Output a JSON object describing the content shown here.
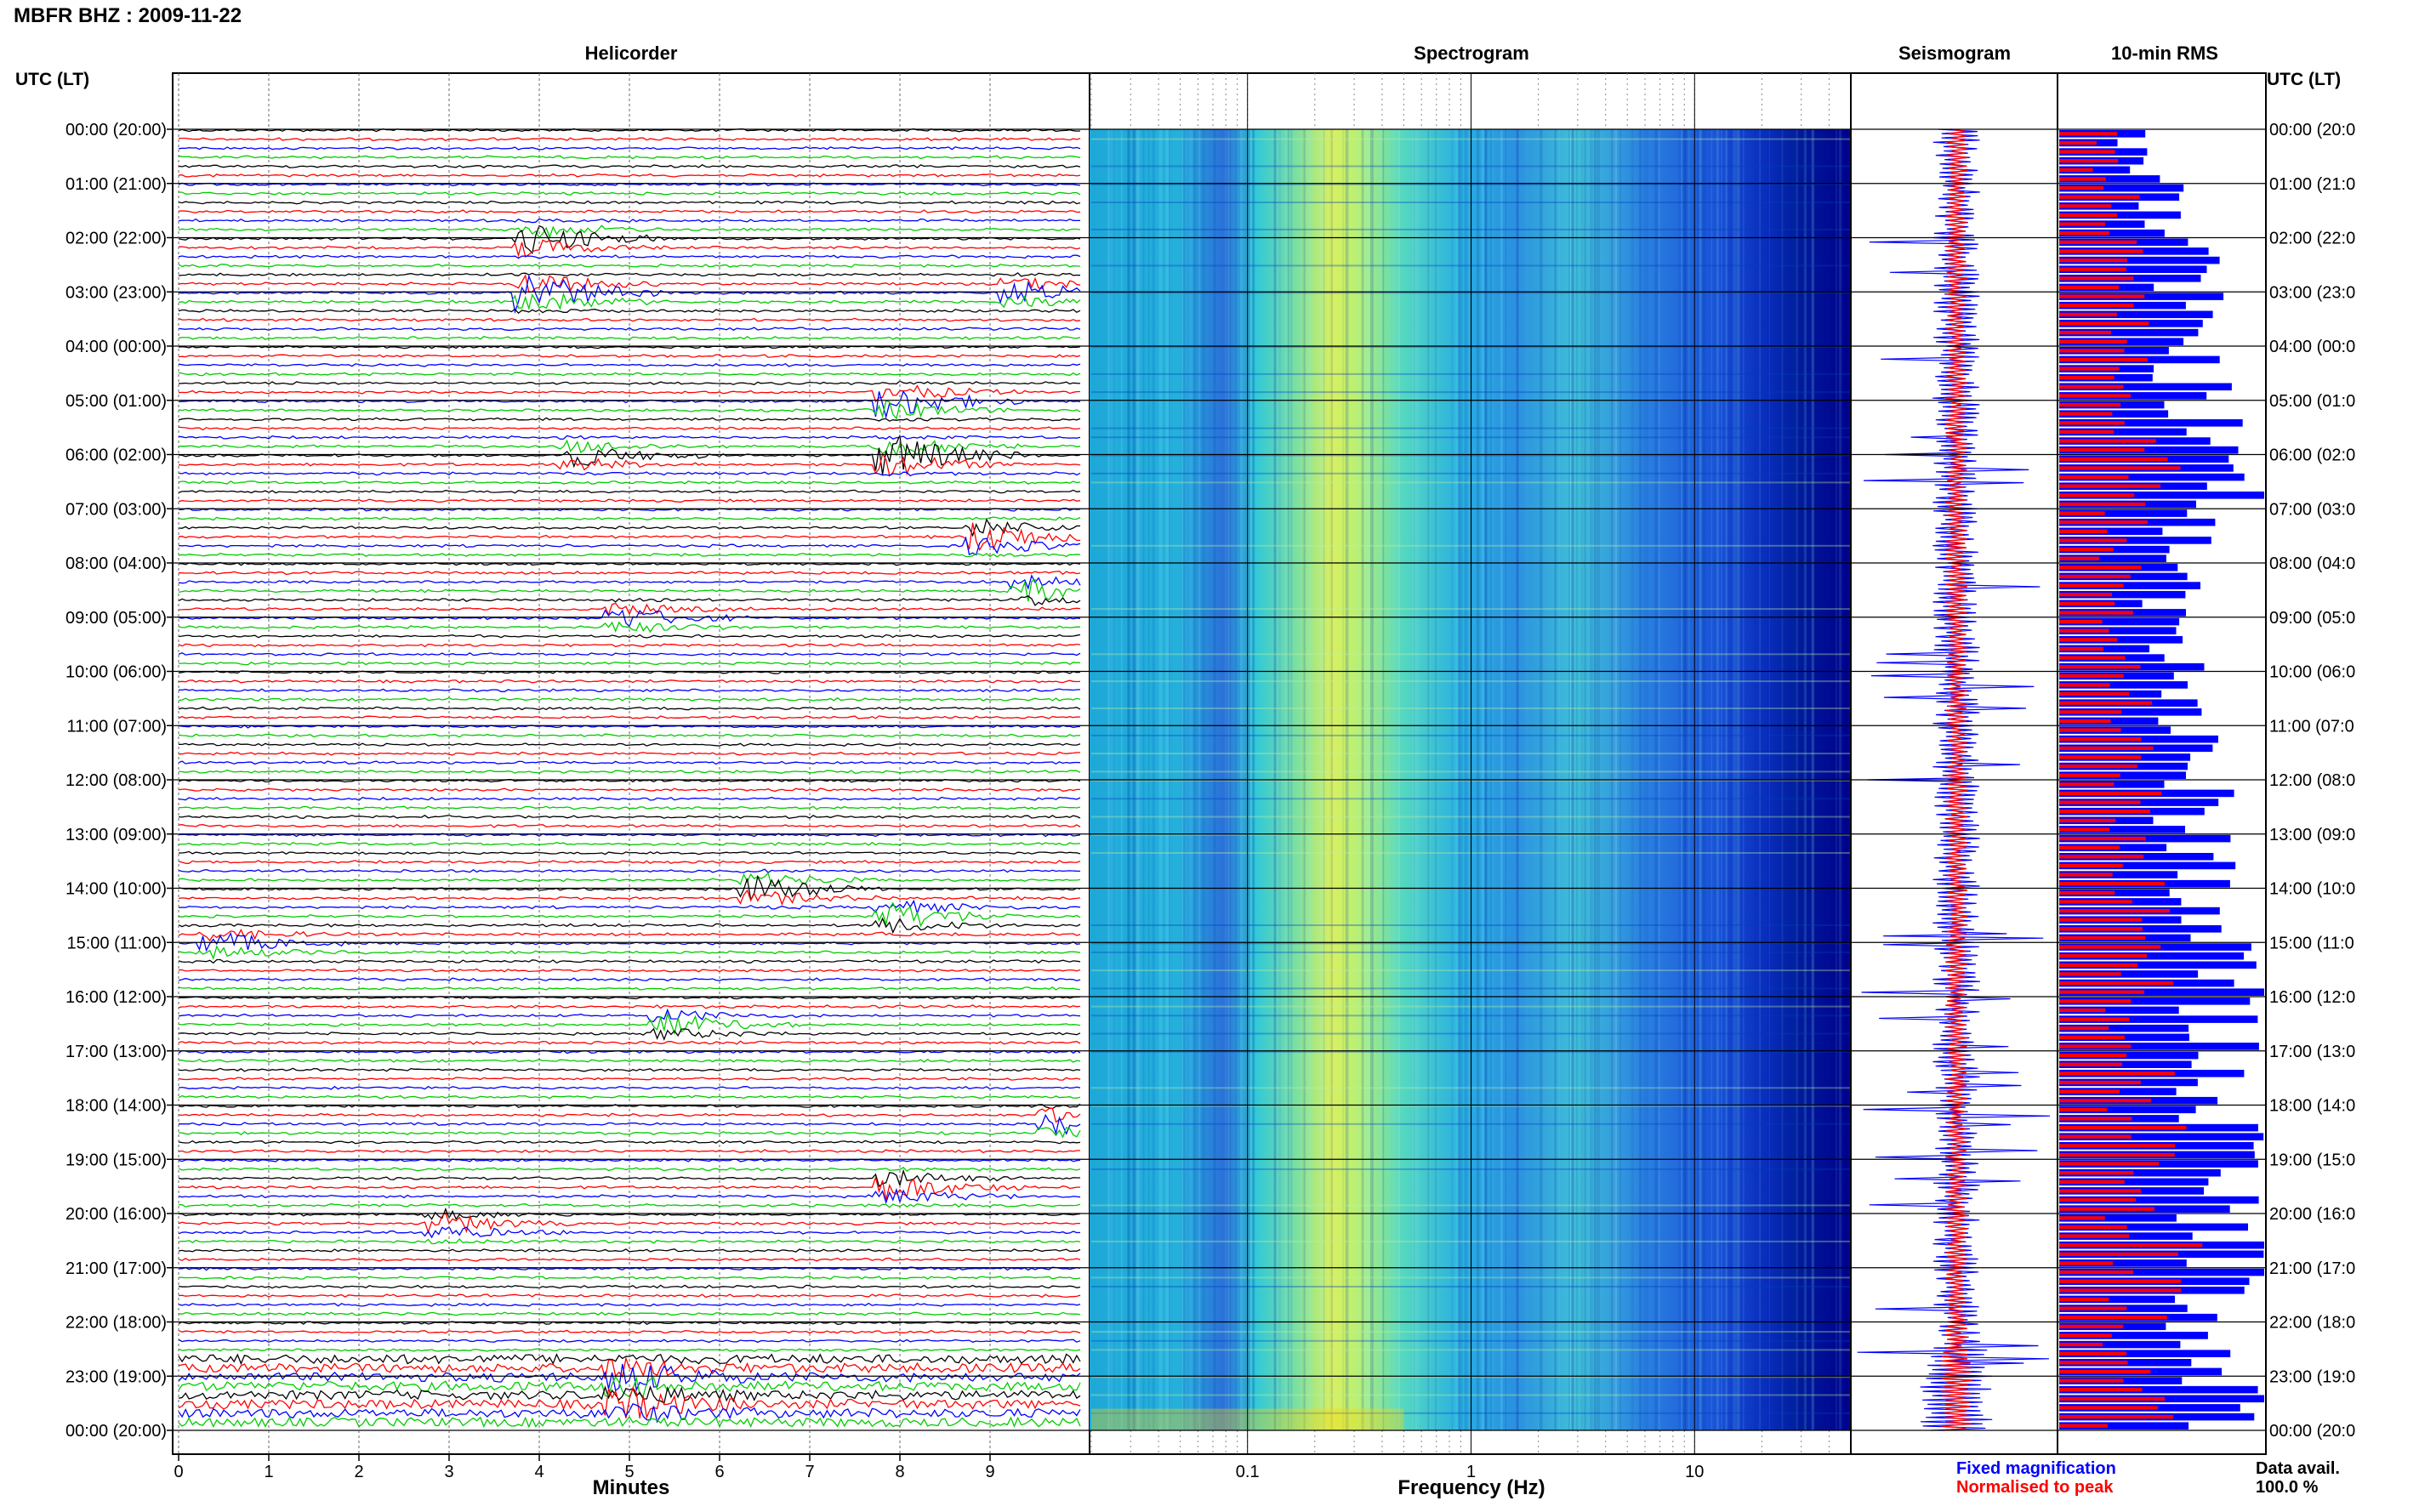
{
  "header": {
    "station_title": "MBFR BHZ : 2009-11-22",
    "utc_lt_label": "UTC (LT)"
  },
  "panels": {
    "helicorder": "Helicorder",
    "spectrogram": "Spectrogram",
    "seismogram": "Seismogram",
    "rms": "10-min RMS"
  },
  "time_labels": [
    "00:00 (20:00)",
    "01:00 (21:00)",
    "02:00 (22:00)",
    "03:00 (23:00)",
    "04:00 (00:00)",
    "05:00 (01:00)",
    "06:00 (02:00)",
    "07:00 (03:00)",
    "08:00 (04:00)",
    "09:00 (05:00)",
    "10:00 (06:00)",
    "11:00 (07:00)",
    "12:00 (08:00)",
    "13:00 (09:00)",
    "14:00 (10:00)",
    "15:00 (11:00)",
    "16:00 (12:00)",
    "17:00 (13:00)",
    "18:00 (14:00)",
    "19:00 (15:00)",
    "20:00 (16:00)",
    "21:00 (17:00)",
    "22:00 (18:00)",
    "23:00 (19:00)",
    "00:00 (20:00)"
  ],
  "right_time_labels": [
    "00:00 (20:0",
    "01:00 (21:0",
    "02:00 (22:0",
    "03:00 (23:0",
    "04:00 (00:0",
    "05:00 (01:0",
    "06:00 (02:0",
    "07:00 (03:0",
    "08:00 (04:0",
    "09:00 (05:0",
    "10:00 (06:0",
    "11:00 (07:0",
    "12:00 (08:0",
    "13:00 (09:0",
    "14:00 (10:0",
    "15:00 (11:0",
    "16:00 (12:0",
    "17:00 (13:0",
    "18:00 (14:0",
    "19:00 (15:0",
    "20:00 (16:0",
    "21:00 (17:0",
    "22:00 (18:0",
    "23:00 (19:0",
    "00:00 (20:0"
  ],
  "x_axis": {
    "helicorder_label": "Minutes",
    "helicorder_ticks": [
      "0",
      "1",
      "2",
      "3",
      "4",
      "5",
      "6",
      "7",
      "8",
      "9"
    ],
    "spectrogram_label": "Frequency (Hz)",
    "spectrogram_ticks": [
      "0.1",
      "1",
      "10"
    ]
  },
  "legend": {
    "fixed": "Fixed magnification",
    "normalised": "Normalised to peak",
    "fixed_color": "#0000ff",
    "normalised_color": "#ff0000"
  },
  "data_avail": {
    "label": "Data avail.",
    "value": "100.0 %"
  },
  "colors": {
    "trace_cycle": [
      "#000000",
      "#ff0000",
      "#0000ff",
      "#00cc00"
    ],
    "spectrogram_low": "#00008b",
    "spectrogram_mid": "#2fb7e0",
    "spectrogram_high": "#ffd800"
  },
  "chart_data": [
    {
      "type": "line",
      "name": "helicorder",
      "xlabel": "Minutes",
      "xlim": [
        0,
        10
      ],
      "rows": 144,
      "row_minutes": 10,
      "trace_color_cycle": [
        "black",
        "red",
        "blue",
        "green"
      ],
      "events_hour_minute_amp": [
        [
          2,
          4,
          3.0
        ],
        [
          3,
          4,
          4.0
        ],
        [
          3,
          9.4,
          2.0
        ],
        [
          5,
          8,
          3.0
        ],
        [
          6,
          8,
          4.0
        ],
        [
          6,
          4.5,
          2.0
        ],
        [
          7.5,
          9,
          3.0
        ],
        [
          8.5,
          9.5,
          2.0
        ],
        [
          9,
          5,
          2.0
        ],
        [
          14,
          6.5,
          2.5
        ],
        [
          14.5,
          8,
          2.5
        ],
        [
          15,
          0.5,
          2.0
        ],
        [
          16.5,
          5.5,
          2.0
        ],
        [
          18.3,
          9.8,
          2.0
        ],
        [
          19.5,
          8,
          2.5
        ],
        [
          20.2,
          3,
          2.0
        ],
        [
          23,
          5,
          2.5
        ],
        [
          23.5,
          5,
          2.5
        ]
      ]
    },
    {
      "type": "heatmap",
      "name": "spectrogram",
      "xlabel": "Frequency (Hz)",
      "xscale": "log",
      "xlim": [
        0.02,
        50
      ],
      "ylim_hours": [
        0,
        24
      ],
      "band_peak_hz": 0.25,
      "secondary_band_hz": 3.0
    },
    {
      "type": "line",
      "name": "seismogram",
      "series": [
        {
          "name": "Fixed magnification",
          "color": "blue"
        },
        {
          "name": "Normalised to peak",
          "color": "red"
        }
      ]
    },
    {
      "type": "bar",
      "name": "10-min RMS",
      "orientation": "horizontal",
      "rows": 144,
      "series": [
        {
          "name": "Fixed magnification",
          "color": "blue"
        },
        {
          "name": "Normalised to peak",
          "color": "red"
        }
      ],
      "hourly_level_fixed": [
        0.45,
        0.6,
        0.7,
        0.7,
        0.75,
        0.8,
        0.95,
        0.7,
        0.65,
        0.7,
        0.7,
        0.7,
        0.75,
        0.8,
        0.85,
        0.9,
        0.9,
        0.85,
        0.95,
        0.9,
        0.95,
        0.9,
        0.85,
        0.95
      ]
    }
  ]
}
